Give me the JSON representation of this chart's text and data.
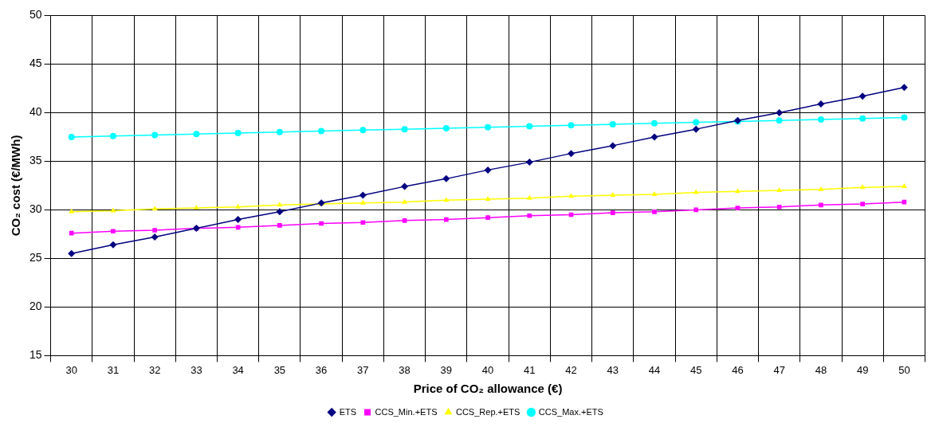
{
  "chart_data": {
    "type": "line",
    "xlabel": "Price of CO₂ allowance (€)",
    "ylabel": "CO₂ cost (€/MWh)",
    "categories": [
      "30",
      "31",
      "32",
      "33",
      "34",
      "35",
      "36",
      "37",
      "38",
      "39",
      "40",
      "41",
      "42",
      "43",
      "44",
      "45",
      "46",
      "47",
      "48",
      "49",
      "50"
    ],
    "ylim": [
      15,
      50
    ],
    "yticks": [
      15,
      20,
      25,
      30,
      35,
      40,
      45,
      50
    ],
    "grid": true,
    "legend": "bottom",
    "series": [
      {
        "name": "ETS",
        "color": "#000080",
        "marker": "diamond",
        "values": [
          25.5,
          26.4,
          27.2,
          28.1,
          29.0,
          29.8,
          30.7,
          31.5,
          32.4,
          33.2,
          34.1,
          34.9,
          35.8,
          36.6,
          37.5,
          38.3,
          39.2,
          40.0,
          40.9,
          41.7,
          42.6
        ]
      },
      {
        "name": "CCS_Min.+ETS",
        "color": "#ff00ff",
        "marker": "square",
        "values": [
          27.6,
          27.8,
          27.9,
          28.1,
          28.2,
          28.4,
          28.6,
          28.7,
          28.9,
          29.0,
          29.2,
          29.4,
          29.5,
          29.7,
          29.8,
          30.0,
          30.2,
          30.3,
          30.5,
          30.6,
          30.8
        ]
      },
      {
        "name": "CCS_Rep.+ETS",
        "color": "#ffff00",
        "marker": "triangle",
        "values": [
          29.8,
          29.9,
          30.1,
          30.2,
          30.3,
          30.5,
          30.6,
          30.7,
          30.8,
          31.0,
          31.1,
          31.2,
          31.4,
          31.5,
          31.6,
          31.8,
          31.9,
          32.0,
          32.1,
          32.3,
          32.4
        ]
      },
      {
        "name": "CCS_Max.+ETS",
        "color": "#00ffff",
        "marker": "circle",
        "values": [
          37.5,
          37.6,
          37.7,
          37.8,
          37.9,
          38.0,
          38.1,
          38.2,
          38.3,
          38.4,
          38.5,
          38.6,
          38.7,
          38.8,
          38.9,
          39.0,
          39.1,
          39.2,
          39.3,
          39.4,
          39.5
        ]
      }
    ]
  }
}
